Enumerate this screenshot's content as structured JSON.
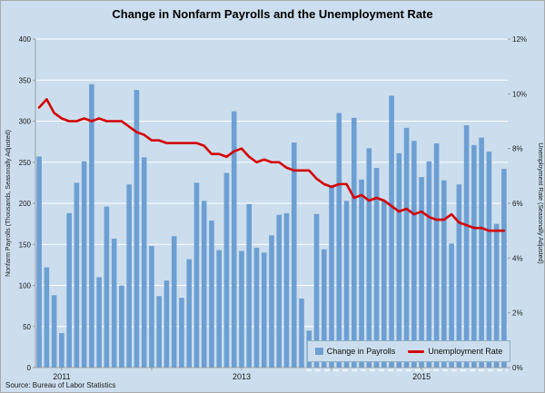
{
  "title": "Change in Nonfarm Payrolls and the Unemployment Rate",
  "source": "Source: Bureau of Labor Statistics",
  "legend": {
    "payrolls_label": "Change in Payrolls",
    "unemployment_label": "Unemployment Rate"
  },
  "colors": {
    "background": "#CCDEED",
    "bar": "#6D9FD3",
    "line": "#D40000",
    "grid": "#FFFFFF",
    "axis": "#8C8C8C",
    "text": "#1A1A1A"
  },
  "chart_data": {
    "type": "bar",
    "subtype": "combo bar + line, dual axis",
    "title": "Change in Nonfarm Payrolls and the Unemployment Rate",
    "x": [
      "Oct-10",
      "Nov-10",
      "Dec-10",
      "Jan-11",
      "Feb-11",
      "Mar-11",
      "Apr-11",
      "May-11",
      "Jun-11",
      "Jul-11",
      "Aug-11",
      "Sep-11",
      "Oct-11",
      "Nov-11",
      "Dec-11",
      "Jan-12",
      "Feb-12",
      "Mar-12",
      "Apr-12",
      "May-12",
      "Jun-12",
      "Jul-12",
      "Aug-12",
      "Sep-12",
      "Oct-12",
      "Nov-12",
      "Dec-12",
      "Jan-13",
      "Feb-13",
      "Mar-13",
      "Apr-13",
      "May-13",
      "Jun-13",
      "Jul-13",
      "Aug-13",
      "Sep-13",
      "Oct-13",
      "Nov-13",
      "Dec-13",
      "Jan-14",
      "Feb-14",
      "Mar-14",
      "Apr-14",
      "May-14",
      "Jun-14",
      "Jul-14",
      "Aug-14",
      "Sep-14",
      "Oct-14",
      "Nov-14",
      "Dec-14",
      "Jan-15",
      "Feb-15",
      "Mar-15",
      "Apr-15",
      "May-15",
      "Jun-15",
      "Jul-15",
      "Aug-15",
      "Sep-15",
      "Oct-15",
      "Nov-15",
      "Dec-15"
    ],
    "x_axis_labels": [
      "2011",
      "2013",
      "2015"
    ],
    "series": [
      {
        "name": "Change in Payrolls",
        "type": "bar",
        "axis": "left",
        "values": [
          257,
          122,
          88,
          42,
          188,
          225,
          251,
          345,
          110,
          196,
          157,
          100,
          223,
          338,
          256,
          148,
          87,
          106,
          160,
          85,
          132,
          225,
          203,
          179,
          143,
          237,
          312,
          142,
          199,
          146,
          140,
          161,
          186,
          188,
          274,
          84,
          45,
          187,
          144,
          222,
          310,
          203,
          304,
          229,
          267,
          243,
          203,
          331,
          261,
          292,
          276,
          232,
          251,
          273,
          228,
          151,
          223,
          295,
          271,
          280,
          263,
          175,
          242
        ]
      },
      {
        "name": "Unemployment Rate",
        "type": "line",
        "axis": "right",
        "values": [
          9.5,
          9.8,
          9.3,
          9.1,
          9.0,
          9.0,
          9.1,
          9.0,
          9.1,
          9.0,
          9.0,
          9.0,
          8.8,
          8.6,
          8.5,
          8.3,
          8.3,
          8.2,
          8.2,
          8.2,
          8.2,
          8.2,
          8.1,
          7.8,
          7.8,
          7.7,
          7.9,
          8.0,
          7.7,
          7.5,
          7.6,
          7.5,
          7.5,
          7.3,
          7.2,
          7.2,
          7.2,
          6.9,
          6.7,
          6.6,
          6.7,
          6.7,
          6.2,
          6.3,
          6.1,
          6.2,
          6.1,
          5.9,
          5.7,
          5.8,
          5.6,
          5.7,
          5.5,
          5.4,
          5.4,
          5.6,
          5.3,
          5.2,
          5.1,
          5.1,
          5.0,
          5.0,
          5.0
        ]
      }
    ],
    "left_axis": {
      "title": "Nonfarm  Payrolls (Thousands, Seasonally Adjusted)",
      "min": 0,
      "max": 400,
      "step": 50,
      "tick_labels": [
        "0",
        "50",
        "100",
        "150",
        "200",
        "250",
        "300",
        "350",
        "400"
      ]
    },
    "right_axis": {
      "title": "Unemployment Rate (Seasonally Adjusted)",
      "min": 0,
      "max": 12,
      "step": 2,
      "format": "percent",
      "tick_labels": [
        "0%",
        "2%",
        "4%",
        "6%",
        "8%",
        "10%",
        "12%"
      ]
    },
    "grid": "horizontal white gridlines",
    "legend_position": "bottom-right inside plot"
  }
}
